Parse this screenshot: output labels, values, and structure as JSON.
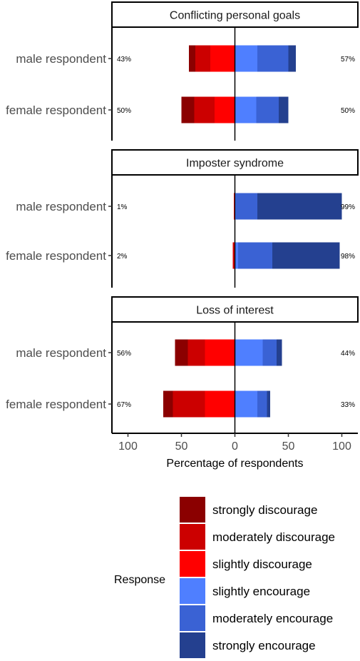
{
  "chart_data": {
    "type": "diverging-stacked-bar",
    "xlabel": "Percentage of respondents",
    "x_ticks": [
      "100",
      "50",
      "0",
      "50",
      "100"
    ],
    "x_tick_values": [
      -100,
      -50,
      0,
      50,
      100
    ],
    "xlim": [
      -115,
      115
    ],
    "legend_title": "Response",
    "legend_position": "bottom",
    "levels": [
      {
        "name": "strongly discourage",
        "color": "#8B0000"
      },
      {
        "name": "moderately discourage",
        "color": "#CC0000"
      },
      {
        "name": "slightly discourage",
        "color": "#FF0000"
      },
      {
        "name": "slightly encourage",
        "color": "#4F7FFF"
      },
      {
        "name": "moderately encourage",
        "color": "#3A62D4"
      },
      {
        "name": "strongly encourage",
        "color": "#24408F"
      }
    ],
    "panels": [
      {
        "title": "Conflicting personal goals",
        "rows": [
          {
            "label": "male respondent",
            "neg_label": "43%",
            "pos_label": "57%",
            "values": [
              6,
              14,
              23,
              21,
              29,
              7
            ]
          },
          {
            "label": "female respondent",
            "neg_label": "50%",
            "pos_label": "50%",
            "values": [
              12,
              19,
              19,
              20,
              21,
              9
            ]
          }
        ]
      },
      {
        "title": "Imposter syndrome",
        "rows": [
          {
            "label": "male respondent",
            "neg_label": "1%",
            "pos_label": "99%",
            "values": [
              0,
              0,
              1,
              1,
              20,
              79
            ]
          },
          {
            "label": "female respondent",
            "neg_label": "2%",
            "pos_label": "98%",
            "values": [
              0,
              1,
              1,
              3,
              32,
              63
            ]
          }
        ]
      },
      {
        "title": "Loss of interest",
        "rows": [
          {
            "label": "male respondent",
            "neg_label": "56%",
            "pos_label": "44%",
            "values": [
              12,
              16,
              28,
              26,
              13,
              5
            ]
          },
          {
            "label": "female respondent",
            "neg_label": "67%",
            "pos_label": "33%",
            "values": [
              9,
              30,
              28,
              21,
              9,
              3
            ]
          }
        ]
      }
    ]
  }
}
